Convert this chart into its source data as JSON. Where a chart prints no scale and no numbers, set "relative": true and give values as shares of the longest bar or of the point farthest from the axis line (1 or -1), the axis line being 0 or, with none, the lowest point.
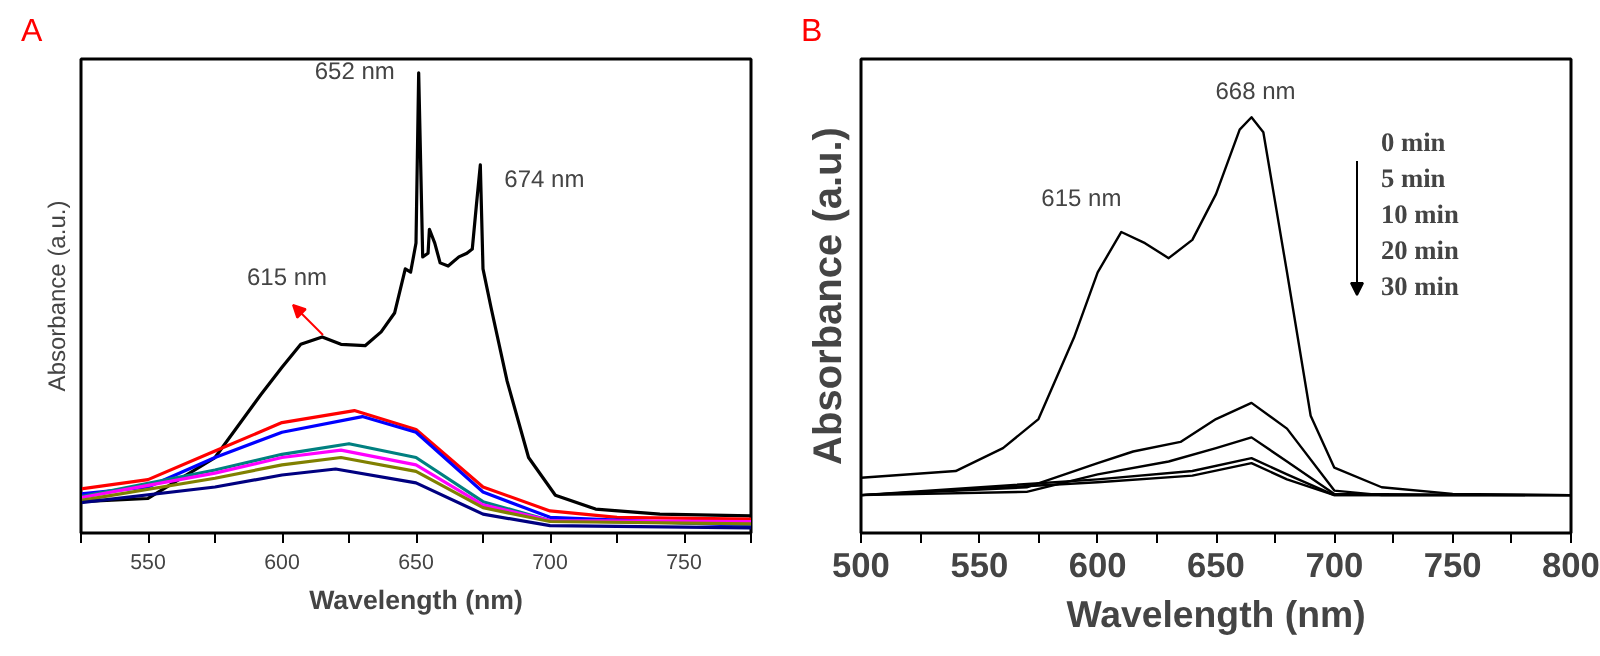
{
  "chart_data": [
    {
      "type": "line",
      "title": "A",
      "xlabel": "Wavelength (nm)",
      "ylabel": "Absorbance (a.u.)",
      "relative": true,
      "grid": false,
      "xlim": [
        525,
        775
      ],
      "xticks": [
        {
          "value": 525,
          "label": null
        },
        550,
        {
          "value": 575,
          "label": null
        },
        600,
        {
          "value": 625,
          "label": null
        },
        650,
        {
          "value": 675,
          "label": null
        },
        700,
        {
          "value": 725,
          "label": null
        },
        750,
        {
          "value": 775,
          "label": null
        }
      ],
      "annotations": [
        {
          "text": "652 nm",
          "x": 651,
          "y": 1.0
        },
        {
          "text": "674 nm",
          "x": 674,
          "y": 0.8
        },
        "615 nm"
      ],
      "series": [
        {
          "color": "#000000",
          "x": [
            525,
            550,
            575,
            592,
            600,
            607,
            615,
            622,
            631,
            637,
            642,
            646,
            648,
            650,
            651,
            652.5,
            654.5,
            655,
            657,
            659,
            662,
            666,
            669,
            671,
            672.5,
            674,
            675,
            678,
            684,
            692,
            702,
            717,
            741,
            775
          ],
          "values": [
            0.068,
            0.075,
            0.164,
            0.3,
            0.36,
            0.41,
            0.426,
            0.41,
            0.407,
            0.437,
            0.478,
            0.574,
            0.567,
            0.63,
            1.0,
            0.6,
            0.608,
            0.66,
            0.63,
            0.587,
            0.58,
            0.6,
            0.608,
            0.617,
            0.71,
            0.8,
            0.574,
            0.49,
            0.33,
            0.164,
            0.082,
            0.052,
            0.041,
            0.037
          ]
        },
        {
          "color": "#ff0000",
          "x": [
            525,
            550,
            575,
            600,
            627,
            650,
            675,
            700,
            725,
            775
          ],
          "values": [
            0.096,
            0.116,
            0.178,
            0.24,
            0.266,
            0.225,
            0.1,
            0.048,
            0.034,
            0.03
          ]
        },
        {
          "color": "#0000ff",
          "x": [
            525,
            550,
            575,
            600,
            630,
            650,
            675,
            700,
            775
          ],
          "values": [
            0.085,
            0.1,
            0.164,
            0.219,
            0.253,
            0.219,
            0.089,
            0.034,
            0.016
          ]
        },
        {
          "color": "#008080",
          "x": [
            525,
            575,
            600,
            625,
            650,
            675,
            700,
            775
          ],
          "values": [
            0.079,
            0.137,
            0.171,
            0.194,
            0.164,
            0.068,
            0.027,
            0.02
          ]
        },
        {
          "color": "#ff00ff",
          "x": [
            525,
            575,
            600,
            622,
            650,
            675,
            700,
            775
          ],
          "values": [
            0.077,
            0.13,
            0.164,
            0.18,
            0.148,
            0.061,
            0.027,
            0.025
          ]
        },
        {
          "color": "#808000",
          "x": [
            525,
            575,
            600,
            622,
            650,
            675,
            700,
            775
          ],
          "values": [
            0.071,
            0.119,
            0.148,
            0.164,
            0.134,
            0.055,
            0.025,
            0.02
          ]
        },
        {
          "color": "#000080",
          "x": [
            525,
            575,
            600,
            620,
            650,
            675,
            700,
            775
          ],
          "values": [
            0.066,
            0.1,
            0.126,
            0.139,
            0.109,
            0.041,
            0.016,
            0.011
          ]
        }
      ]
    },
    {
      "type": "line",
      "title": "B",
      "xlabel": "Wavelength (nm)",
      "ylabel": "Absorbance (a.u.)",
      "relative": true,
      "grid": false,
      "xlim": [
        500,
        800
      ],
      "xticks": [
        500,
        {
          "value": 525,
          "label": null
        },
        550,
        {
          "value": 575,
          "label": null
        },
        600,
        {
          "value": 625,
          "label": null
        },
        650,
        {
          "value": 675,
          "label": null
        },
        700,
        {
          "value": 725,
          "label": null
        },
        750,
        {
          "value": 775,
          "label": null
        },
        800
      ],
      "annotations": [
        {
          "text": "615 nm",
          "x": 610,
          "y": 0.724
        },
        {
          "text": "668 nm",
          "x": 665,
          "y": 1.0
        },
        "0  min",
        "5  min",
        "10 min",
        "20 min",
        "30 min"
      ],
      "series": [
        {
          "color": "#000000",
          "x": [
            500,
            540,
            560,
            575,
            590,
            600,
            610,
            620,
            630,
            640,
            650,
            660,
            665,
            670,
            680,
            690,
            700,
            720,
            750,
            800
          ],
          "values": [
            0.133,
            0.149,
            0.204,
            0.274,
            0.47,
            0.627,
            0.724,
            0.697,
            0.661,
            0.705,
            0.815,
            0.97,
            1.0,
            0.964,
            0.627,
            0.282,
            0.157,
            0.11,
            0.094,
            0.091
          ]
        },
        {
          "color": "#000000",
          "x": [
            500,
            570,
            600,
            615,
            635,
            650,
            665,
            680,
            700,
            720,
            800
          ],
          "values": [
            0.091,
            0.11,
            0.168,
            0.196,
            0.219,
            0.274,
            0.313,
            0.251,
            0.102,
            0.091,
            0.091
          ]
        },
        {
          "color": "#000000",
          "x": [
            500,
            570,
            600,
            630,
            650,
            665,
            680,
            700,
            800
          ],
          "values": [
            0.091,
            0.099,
            0.141,
            0.172,
            0.204,
            0.23,
            0.172,
            0.094,
            0.091
          ]
        },
        {
          "color": "#000000",
          "x": [
            500,
            600,
            640,
            665,
            680,
            700,
            800
          ],
          "values": [
            0.091,
            0.129,
            0.149,
            0.18,
            0.141,
            0.091,
            0.091
          ]
        },
        {
          "color": "#000000",
          "x": [
            500,
            600,
            640,
            665,
            680,
            700,
            800
          ],
          "values": [
            0.091,
            0.122,
            0.138,
            0.168,
            0.129,
            0.091,
            0.091
          ]
        }
      ]
    }
  ]
}
